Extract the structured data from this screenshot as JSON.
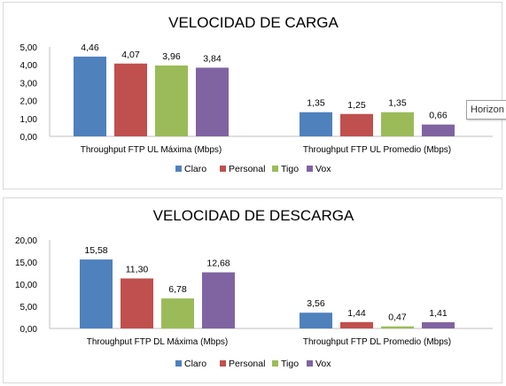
{
  "chart_data": [
    {
      "type": "bar",
      "title": "VELOCIDAD DE CARGA",
      "categories": [
        "Throughput FTP UL Máxima (Mbps)",
        "Throughput FTP UL Promedio (Mbps)"
      ],
      "series": [
        {
          "name": "Claro",
          "values": [
            4.46,
            1.35
          ],
          "labels": [
            "4,46",
            "1,35"
          ],
          "color": "#4F81BD"
        },
        {
          "name": "Personal",
          "values": [
            4.07,
            1.25
          ],
          "labels": [
            "4,07",
            "1,25"
          ],
          "color": "#C0504D"
        },
        {
          "name": "Tigo",
          "values": [
            3.96,
            1.35
          ],
          "labels": [
            "3,96",
            "1,35"
          ],
          "color": "#9BBB59"
        },
        {
          "name": "Vox",
          "values": [
            3.84,
            0.66
          ],
          "labels": [
            "3,84",
            "0,66"
          ],
          "color": "#8064A2"
        }
      ],
      "ylim": [
        0,
        5
      ],
      "yticks": [
        0,
        1,
        2,
        3,
        4,
        5
      ],
      "ytick_labels": [
        "0,00",
        "1,00",
        "2,00",
        "3,00",
        "4,00",
        "5,00"
      ],
      "legend_position": "bottom",
      "grid": false
    },
    {
      "type": "bar",
      "title": "VELOCIDAD DE DESCARGA",
      "categories": [
        "Throughput FTP DL Máxima (Mbps)",
        "Throughput FTP DL Promedio (Mbps)"
      ],
      "series": [
        {
          "name": "Claro",
          "values": [
            15.58,
            3.56
          ],
          "labels": [
            "15,58",
            "3,56"
          ],
          "color": "#4F81BD"
        },
        {
          "name": "Personal",
          "values": [
            11.3,
            1.44
          ],
          "labels": [
            "11,30",
            "1,44"
          ],
          "color": "#C0504D"
        },
        {
          "name": "Tigo",
          "values": [
            6.78,
            0.47
          ],
          "labels": [
            "6,78",
            "0,47"
          ],
          "color": "#9BBB59"
        },
        {
          "name": "Vox",
          "values": [
            12.68,
            1.41
          ],
          "labels": [
            "12,68",
            "1,41"
          ],
          "color": "#8064A2"
        }
      ],
      "ylim": [
        0,
        20
      ],
      "yticks": [
        0,
        5,
        10,
        15,
        20
      ],
      "ytick_labels": [
        "0,00",
        "5,00",
        "10,00",
        "15,00",
        "20,00"
      ],
      "legend_position": "bottom",
      "grid": false
    }
  ],
  "tooltip": {
    "text": "Horizon"
  }
}
